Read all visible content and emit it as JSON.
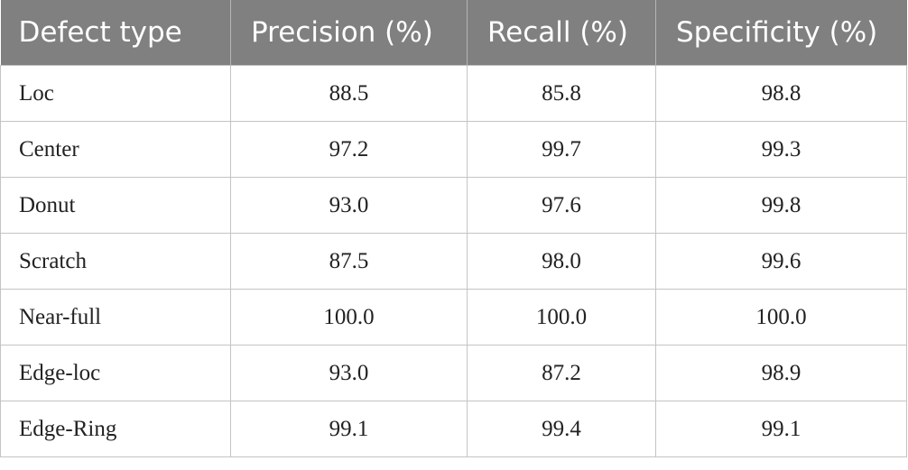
{
  "table": {
    "columns": [
      "Defect type",
      "Precision (%)",
      "Recall (%)",
      "Specificity (%)"
    ],
    "rows": [
      [
        "Loc",
        "88.5",
        "85.8",
        "98.8"
      ],
      [
        "Center",
        "97.2",
        "99.7",
        "99.3"
      ],
      [
        "Donut",
        "93.0",
        "97.6",
        "99.8"
      ],
      [
        "Scratch",
        "87.5",
        "98.0",
        "99.6"
      ],
      [
        "Near-full",
        "100.0",
        "100.0",
        "100.0"
      ],
      [
        "Edge-loc",
        "93.0",
        "87.2",
        "98.9"
      ],
      [
        "Edge-Ring",
        "99.1",
        "99.4",
        "99.1"
      ]
    ]
  }
}
